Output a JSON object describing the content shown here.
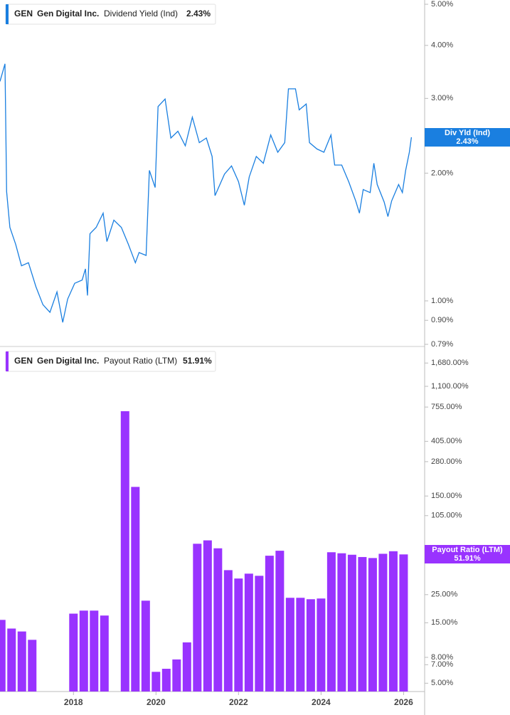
{
  "chart_data": [
    {
      "type": "line",
      "ticker": "GEN",
      "company": "Gen Digital Inc.",
      "legend_value": "2.43%",
      "badge_label": "Div Yld (Ind)",
      "log_scale": true,
      "grid": false,
      "x": [
        2016.22,
        2016.34,
        2016.38,
        2016.46,
        2016.6,
        2016.74,
        2016.91,
        2017.09,
        2017.26,
        2017.43,
        2017.6,
        2017.74,
        2017.86,
        2018.03,
        2018.21,
        2018.29,
        2018.34,
        2018.4,
        2018.55,
        2018.72,
        2018.81,
        2018.98,
        2019.16,
        2019.33,
        2019.5,
        2019.59,
        2019.76,
        2019.84,
        2019.98,
        2020.05,
        2020.22,
        2020.36,
        2020.53,
        2020.71,
        2020.88,
        2021.05,
        2021.22,
        2021.36,
        2021.43,
        2021.66,
        2021.83,
        2022.0,
        2022.14,
        2022.26,
        2022.43,
        2022.6,
        2022.78,
        2022.95,
        2023.12,
        2023.21,
        2023.38,
        2023.47,
        2023.64,
        2023.72,
        2023.9,
        2024.07,
        2024.24,
        2024.33,
        2024.5,
        2024.67,
        2024.84,
        2024.93,
        2025.02,
        2025.19,
        2025.28,
        2025.36,
        2025.53,
        2025.62,
        2025.71,
        2025.88,
        2025.97,
        2026.05,
        2026.14,
        2026.19
      ],
      "series": [
        {
          "name": "Dividend Yield (Ind)",
          "color": "#1a7fe0",
          "values": [
            3.29,
            3.62,
            1.81,
            1.49,
            1.36,
            1.21,
            1.23,
            1.08,
            0.98,
            0.94,
            1.05,
            0.89,
            1.01,
            1.1,
            1.12,
            1.19,
            1.03,
            1.44,
            1.49,
            1.61,
            1.38,
            1.55,
            1.49,
            1.36,
            1.23,
            1.3,
            1.28,
            2.03,
            1.85,
            2.87,
            2.99,
            2.42,
            2.51,
            2.32,
            2.71,
            2.36,
            2.42,
            2.19,
            1.77,
            1.99,
            2.08,
            1.91,
            1.68,
            1.96,
            2.19,
            2.11,
            2.46,
            2.24,
            2.36,
            3.16,
            3.16,
            2.82,
            2.91,
            2.36,
            2.28,
            2.24,
            2.46,
            2.09,
            2.09,
            1.91,
            1.72,
            1.61,
            1.83,
            1.8,
            2.11,
            1.88,
            1.71,
            1.58,
            1.72,
            1.88,
            1.8,
            2.03,
            2.24,
            2.43
          ]
        }
      ],
      "xlim": [
        2016.22,
        2026.51
      ],
      "ylim": [
        0.79,
        5
      ],
      "yticks": [
        {
          "value": 5,
          "label": "5.00%"
        },
        {
          "value": 4,
          "label": "4.00%"
        },
        {
          "value": 3,
          "label": "3.00%"
        },
        {
          "value": 2,
          "label": "2.00%"
        },
        {
          "value": 1,
          "label": "1.00%"
        },
        {
          "value": 0.9,
          "label": "0.90%"
        },
        {
          "value": 0.79,
          "label": "0.79%"
        }
      ]
    },
    {
      "type": "bar",
      "ticker": "GEN",
      "company": "Gen Digital Inc.",
      "legend_value": "51.91%",
      "badge_label": "Payout Ratio (LTM)",
      "log_scale": true,
      "grid": false,
      "x": [
        2016.25,
        2016.5,
        2016.75,
        2017.0,
        2018.0,
        2018.25,
        2018.5,
        2018.75,
        2019.25,
        2019.5,
        2019.75,
        2020.0,
        2020.25,
        2020.5,
        2020.75,
        2021.0,
        2021.25,
        2021.5,
        2021.75,
        2022.0,
        2022.25,
        2022.5,
        2022.75,
        2023.0,
        2023.25,
        2023.5,
        2023.75,
        2024.0,
        2024.25,
        2024.5,
        2024.75,
        2025.0,
        2025.25,
        2025.5,
        2025.75,
        2026.0
      ],
      "series": [
        {
          "name": "Payout Ratio (LTM)",
          "color": "#9933ff",
          "values": [
            15.8,
            13.5,
            12.8,
            11.0,
            17.7,
            18.7,
            18.7,
            17.1,
            700,
            177,
            22.4,
            6.15,
            6.5,
            7.7,
            10.5,
            63,
            67,
            58,
            39,
            33.5,
            36.6,
            35.2,
            50.7,
            55.5,
            23.6,
            23.6,
            23,
            23.3,
            54,
            53,
            51.6,
            49.5,
            48.6,
            52.5,
            55,
            51.91
          ]
        }
      ],
      "xlim": [
        2016.22,
        2026.51
      ],
      "xticks": [
        2018,
        2020,
        2022,
        2024,
        2026
      ],
      "ylim": [
        4.3,
        2100
      ],
      "yticks": [
        {
          "value": 1680,
          "label": "1,680.00%"
        },
        {
          "value": 1100,
          "label": "1,100.00%"
        },
        {
          "value": 755,
          "label": "755.00%"
        },
        {
          "value": 405,
          "label": "405.00%"
        },
        {
          "value": 280,
          "label": "280.00%"
        },
        {
          "value": 150,
          "label": "150.00%"
        },
        {
          "value": 105,
          "label": "105.00%"
        },
        {
          "value": 25,
          "label": "25.00%"
        },
        {
          "value": 15,
          "label": "15.00%"
        },
        {
          "value": 8,
          "label": "8.00%"
        },
        {
          "value": 7,
          "label": "7.00%"
        },
        {
          "value": 5,
          "label": "5.00%"
        }
      ]
    }
  ]
}
